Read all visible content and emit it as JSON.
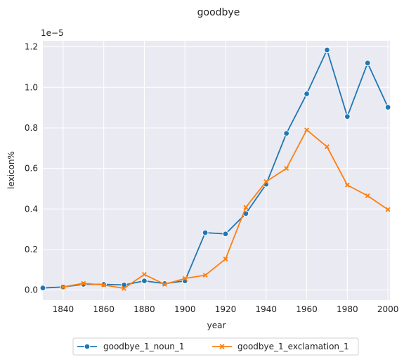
{
  "chart_data": {
    "type": "line",
    "title": "goodbye",
    "xlabel": "year",
    "ylabel": "lexicon%",
    "y_scale_factor_label": "1e−5",
    "xlim": [
      1830,
      2001
    ],
    "ylim": [
      -0.05,
      1.23
    ],
    "x_ticks": [
      1840,
      1860,
      1880,
      1900,
      1920,
      1940,
      1960,
      1980,
      2000
    ],
    "y_ticks": [
      0.0,
      0.2,
      0.4,
      0.6,
      0.8,
      1.0,
      1.2
    ],
    "x_tick_labels": [
      "1840",
      "1860",
      "1880",
      "1900",
      "1920",
      "1940",
      "1960",
      "1980",
      "2000"
    ],
    "y_tick_labels": [
      "0.0",
      "0.2",
      "0.4",
      "0.6",
      "0.8",
      "1.0",
      "1.2"
    ],
    "grid": true,
    "legend_placement": "bottom-center",
    "series": [
      {
        "name": "goodbye_1_noun_1",
        "color": "#1f77b4",
        "marker": "circle",
        "x": [
          1830,
          1840,
          1850,
          1860,
          1870,
          1880,
          1890,
          1900,
          1910,
          1920,
          1930,
          1940,
          1950,
          1960,
          1970,
          1980,
          1990,
          2000
        ],
        "y": [
          0.01,
          0.015,
          0.028,
          0.028,
          0.025,
          0.045,
          0.032,
          0.045,
          0.283,
          0.277,
          0.377,
          0.522,
          0.773,
          0.968,
          1.185,
          0.856,
          1.12,
          0.902
        ]
      },
      {
        "name": "goodbye_1_exclamation_1",
        "color": "#ff7f0e",
        "marker": "x",
        "x": [
          1840,
          1850,
          1860,
          1870,
          1880,
          1890,
          1900,
          1910,
          1920,
          1930,
          1940,
          1950,
          1960,
          1970,
          1980,
          1990,
          2000
        ],
        "y": [
          0.015,
          0.033,
          0.025,
          0.008,
          0.077,
          0.028,
          0.057,
          0.073,
          0.153,
          0.408,
          0.535,
          0.6,
          0.79,
          0.707,
          0.518,
          0.465,
          0.397
        ]
      }
    ]
  }
}
